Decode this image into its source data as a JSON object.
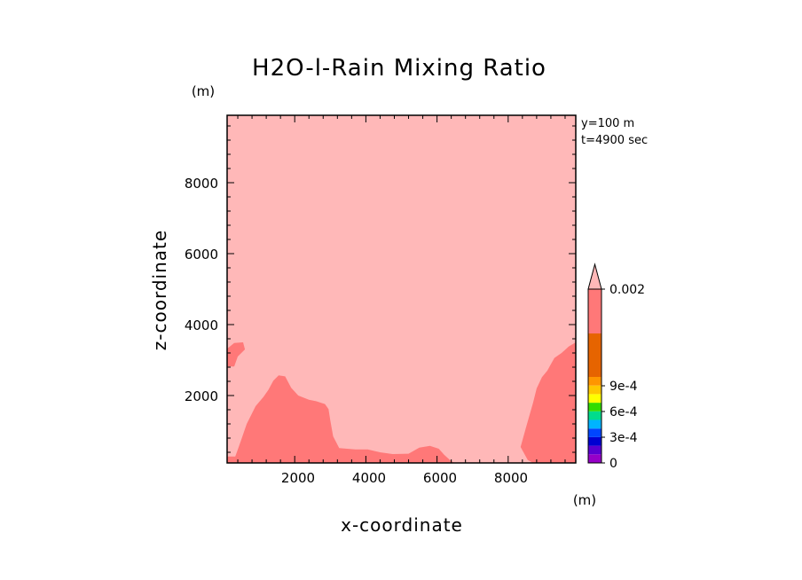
{
  "chart_data": {
    "type": "contour",
    "title": "H2O-l-Rain Mixing Ratio",
    "xlabel": "x-coordinate",
    "ylabel": "z-coordinate",
    "x_unit": "(m)",
    "y_unit": "(m)",
    "annotations": [
      "y=100 m",
      "t=4900 sec"
    ],
    "xlim": [
      100,
      9900
    ],
    "ylim": [
      100,
      9900
    ],
    "xticks": [
      2000,
      4000,
      6000,
      8000
    ],
    "yticks": [
      2000,
      4000,
      6000,
      8000
    ],
    "xtick_labels": [
      "2000",
      "4000",
      "6000",
      "8000"
    ],
    "ytick_labels": [
      "2000",
      "4000",
      "6000",
      "8000"
    ],
    "minor_tick_step": 400,
    "background_level_color": "#ffb8b8",
    "contour_regions": [
      {
        "name": "lower-left-region",
        "color": "#ff7878",
        "points": [
          [
            100,
            100
          ],
          [
            100,
            280
          ],
          [
            330,
            280
          ],
          [
            480,
            700
          ],
          [
            650,
            1200
          ],
          [
            900,
            1700
          ],
          [
            1120,
            1960
          ],
          [
            1260,
            2160
          ],
          [
            1400,
            2420
          ],
          [
            1550,
            2570
          ],
          [
            1730,
            2540
          ],
          [
            1900,
            2220
          ],
          [
            2100,
            2000
          ],
          [
            2400,
            1880
          ],
          [
            2600,
            1840
          ],
          [
            2850,
            1760
          ],
          [
            2950,
            1620
          ],
          [
            3000,
            1300
          ],
          [
            3080,
            850
          ],
          [
            3250,
            520
          ],
          [
            3700,
            480
          ],
          [
            4050,
            480
          ],
          [
            4400,
            400
          ],
          [
            4750,
            350
          ],
          [
            5200,
            360
          ],
          [
            5500,
            530
          ],
          [
            5800,
            580
          ],
          [
            6050,
            500
          ],
          [
            6200,
            330
          ],
          [
            6400,
            150
          ],
          [
            6500,
            100
          ]
        ]
      },
      {
        "name": "lower-left-lobe",
        "color": "#ff7878",
        "points": [
          [
            100,
            2820
          ],
          [
            300,
            2820
          ],
          [
            400,
            3100
          ],
          [
            600,
            3300
          ],
          [
            550,
            3500
          ],
          [
            300,
            3480
          ],
          [
            100,
            3320
          ]
        ]
      },
      {
        "name": "lower-right-region",
        "color": "#ff7878",
        "points": [
          [
            9900,
            100
          ],
          [
            9900,
            3500
          ],
          [
            9700,
            3380
          ],
          [
            9500,
            3200
          ],
          [
            9300,
            3060
          ],
          [
            9200,
            2880
          ],
          [
            9100,
            2700
          ],
          [
            8950,
            2520
          ],
          [
            8800,
            2200
          ],
          [
            8700,
            1800
          ],
          [
            8600,
            1450
          ],
          [
            8500,
            1100
          ],
          [
            8350,
            550
          ],
          [
            8550,
            180
          ],
          [
            8700,
            100
          ]
        ]
      }
    ],
    "colorbar": {
      "levels": [
        0,
        0.0001,
        0.0002,
        0.0003,
        0.0004,
        0.0005,
        0.0006,
        0.0007,
        0.0008,
        0.0009,
        0.001,
        0.0015,
        0.002
      ],
      "colors": [
        "#9600c8",
        "#5a00d2",
        "#0000d2",
        "#0046ff",
        "#00b4ff",
        "#00dc8c",
        "#32dc00",
        "#ffff00",
        "#ffc800",
        "#ff9600",
        "#e66400",
        "#e60000",
        "#ff7878"
      ],
      "over_color": "#ffb8b8",
      "labels": [
        {
          "value": 0,
          "text": "0"
        },
        {
          "value": 0.0003,
          "text": "3e-4"
        },
        {
          "value": 0.0006,
          "text": "6e-4"
        },
        {
          "value": 0.0009,
          "text": "9e-4"
        },
        {
          "value": 0.002,
          "text": "0.002"
        }
      ],
      "extend": "max"
    }
  }
}
